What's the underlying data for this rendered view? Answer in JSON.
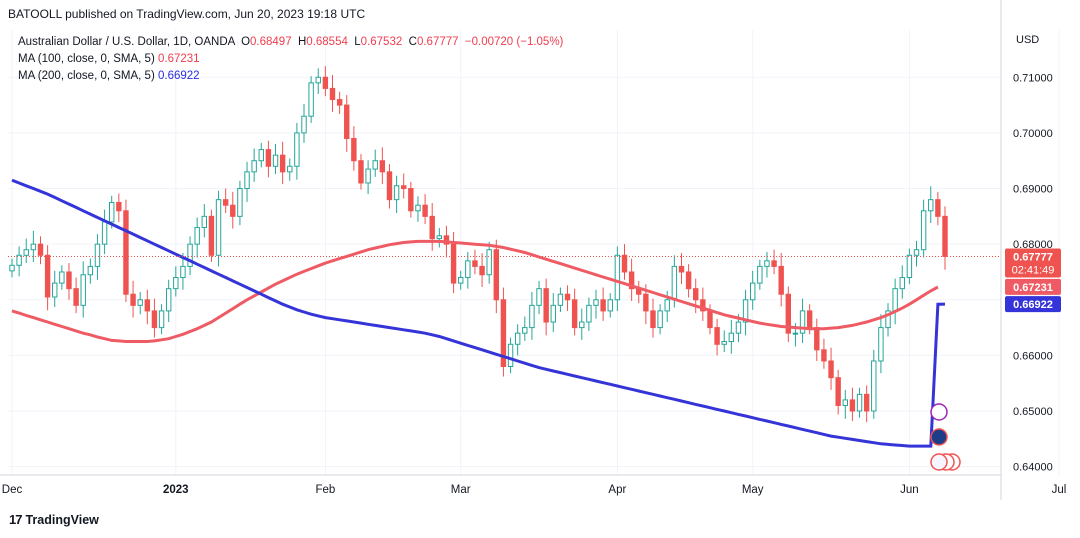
{
  "header": {
    "published": "BATOOLL published on TradingView.com, Jun 20, 2023 19:18 UTC"
  },
  "legend": {
    "symbol": "Australian Dollar / U.S. Dollar, 1D, OANDA",
    "o_label": "O",
    "o_value": "0.68497",
    "h_label": "H",
    "h_value": "0.68554",
    "l_label": "L",
    "l_value": "0.67532",
    "c_label": "C",
    "c_value": "0.67777",
    "change": "−0.00720 (−1.05%)",
    "ma100_label": "MA (100, close, 0, SMA, 5)",
    "ma100_value": "0.67231",
    "ma200_label": "MA (200, close, 0, SMA, 5)",
    "ma200_value": "0.66922"
  },
  "axis": {
    "currency": "USD",
    "price_box": "0.67777",
    "countdown": "02:41:49",
    "ma100_box": "0.67231",
    "ma200_box": "0.66922"
  },
  "footer": {
    "brand": "TradingView",
    "mark": "17"
  },
  "colors": {
    "up": "#26a69a",
    "down": "#ef5350",
    "ma100": "#ef5b64",
    "ma200": "#3434d8"
  },
  "chart_data": {
    "type": "candlestick",
    "title": "Australian Dollar / U.S. Dollar, 1D, OANDA",
    "y_ticks": [
      0.64,
      0.65,
      0.66,
      0.67,
      0.68,
      0.69,
      0.7,
      0.71
    ],
    "y_tick_labels": [
      "0.64000",
      "0.65000",
      "0.66000",
      "0.67000",
      "0.68000",
      "0.69000",
      "0.70000",
      "0.71000"
    ],
    "ylim": [
      0.6385,
      0.7185
    ],
    "x_labels": [
      "Dec",
      "2023",
      "Feb",
      "Mar",
      "Apr",
      "May",
      "Jun",
      "Jul"
    ],
    "x_label_index": [
      0,
      23,
      44,
      63,
      85,
      104,
      126,
      147
    ],
    "closes": [
      0.6762,
      0.678,
      0.679,
      0.68,
      0.678,
      0.6705,
      0.673,
      0.675,
      0.672,
      0.669,
      0.6745,
      0.676,
      0.68,
      0.684,
      0.6875,
      0.686,
      0.671,
      0.669,
      0.67,
      0.668,
      0.665,
      0.668,
      0.672,
      0.674,
      0.676,
      0.68,
      0.683,
      0.685,
      0.678,
      0.688,
      0.687,
      0.685,
      0.69,
      0.693,
      0.695,
      0.697,
      0.694,
      0.696,
      0.693,
      0.694,
      0.7,
      0.703,
      0.709,
      0.71,
      0.708,
      0.706,
      0.705,
      0.699,
      0.695,
      0.691,
      0.6935,
      0.695,
      0.693,
      0.688,
      0.6905,
      0.69,
      0.686,
      0.687,
      0.685,
      0.681,
      0.6815,
      0.68,
      0.673,
      0.674,
      0.677,
      0.676,
      0.6745,
      0.679,
      0.67,
      0.658,
      0.662,
      0.664,
      0.665,
      0.669,
      0.672,
      0.666,
      0.669,
      0.671,
      0.67,
      0.665,
      0.666,
      0.669,
      0.67,
      0.668,
      0.67,
      0.678,
      0.675,
      0.672,
      0.671,
      0.668,
      0.665,
      0.668,
      0.67,
      0.676,
      0.675,
      0.672,
      0.67,
      0.668,
      0.665,
      0.662,
      0.6625,
      0.664,
      0.666,
      0.67,
      0.673,
      0.676,
      0.677,
      0.676,
      0.671,
      0.664,
      0.664,
      0.668,
      0.665,
      0.661,
      0.659,
      0.656,
      0.651,
      0.652,
      0.65,
      0.653,
      0.65,
      0.659,
      0.665,
      0.668,
      0.672,
      0.674,
      0.678,
      0.679,
      0.686,
      0.688,
      0.685,
      0.6778
    ],
    "ma100": [
      0.668,
      0.6676,
      0.6672,
      0.6668,
      0.6664,
      0.666,
      0.6656,
      0.6652,
      0.6648,
      0.6644,
      0.664,
      0.6637,
      0.6633,
      0.663,
      0.6627,
      0.6626,
      0.6625,
      0.6625,
      0.6625,
      0.6625,
      0.6626,
      0.6628,
      0.663,
      0.6634,
      0.6638,
      0.6643,
      0.6648,
      0.6654,
      0.666,
      0.6668,
      0.6676,
      0.6684,
      0.6692,
      0.67,
      0.6707,
      0.6714,
      0.6721,
      0.6728,
      0.6734,
      0.674,
      0.6746,
      0.6751,
      0.6756,
      0.6761,
      0.6766,
      0.677,
      0.6774,
      0.6778,
      0.6782,
      0.6786,
      0.679,
      0.6793,
      0.6796,
      0.6799,
      0.6801,
      0.6803,
      0.6804,
      0.6805,
      0.6805,
      0.6805,
      0.6805,
      0.6804,
      0.6803,
      0.6802,
      0.6801,
      0.68,
      0.6799,
      0.6798,
      0.6796,
      0.6794,
      0.6791,
      0.6788,
      0.6785,
      0.6781,
      0.6777,
      0.6773,
      0.6769,
      0.6765,
      0.6761,
      0.6757,
      0.6753,
      0.6749,
      0.6745,
      0.6741,
      0.6737,
      0.6733,
      0.6729,
      0.6725,
      0.6721,
      0.6717,
      0.6713,
      0.6709,
      0.6705,
      0.6701,
      0.6697,
      0.6693,
      0.6689,
      0.6685,
      0.6681,
      0.6677,
      0.6673,
      0.667,
      0.6667,
      0.6664,
      0.6661,
      0.6658,
      0.6656,
      0.6654,
      0.6652,
      0.6651,
      0.665,
      0.6649,
      0.6648,
      0.6648,
      0.6648,
      0.6649,
      0.665,
      0.6652,
      0.6654,
      0.6657,
      0.666,
      0.6664,
      0.6668,
      0.6673,
      0.6679,
      0.6685,
      0.6692,
      0.67,
      0.6708,
      0.6716,
      0.6723
    ],
    "ma200": [
      0.6915,
      0.691,
      0.6905,
      0.69,
      0.6895,
      0.689,
      0.6884,
      0.6878,
      0.6872,
      0.6866,
      0.686,
      0.6854,
      0.6848,
      0.6842,
      0.6836,
      0.683,
      0.6824,
      0.6818,
      0.6812,
      0.6806,
      0.68,
      0.6794,
      0.6788,
      0.6782,
      0.6776,
      0.677,
      0.6764,
      0.6758,
      0.6752,
      0.6746,
      0.674,
      0.6734,
      0.6728,
      0.6722,
      0.6716,
      0.671,
      0.6704,
      0.6698,
      0.6692,
      0.6687,
      0.6682,
      0.6678,
      0.6674,
      0.6671,
      0.6668,
      0.6666,
      0.6664,
      0.6662,
      0.666,
      0.6658,
      0.6656,
      0.6654,
      0.6652,
      0.665,
      0.6648,
      0.6646,
      0.6644,
      0.6642,
      0.664,
      0.6637,
      0.6634,
      0.663,
      0.6626,
      0.6622,
      0.6618,
      0.6614,
      0.661,
      0.6606,
      0.6602,
      0.6598,
      0.6594,
      0.659,
      0.6586,
      0.6582,
      0.6578,
      0.6575,
      0.6572,
      0.6569,
      0.6566,
      0.6563,
      0.656,
      0.6557,
      0.6554,
      0.6551,
      0.6548,
      0.6545,
      0.6542,
      0.6539,
      0.6536,
      0.6533,
      0.653,
      0.6527,
      0.6524,
      0.6521,
      0.6518,
      0.6515,
      0.6512,
      0.6509,
      0.6506,
      0.6503,
      0.65,
      0.6497,
      0.6494,
      0.6491,
      0.6488,
      0.6485,
      0.6482,
      0.6479,
      0.6476,
      0.6473,
      0.647,
      0.6467,
      0.6464,
      0.6461,
      0.6458,
      0.6455,
      0.6453,
      0.6451,
      0.6449,
      0.6447,
      0.6445,
      0.6443,
      0.6441,
      0.644,
      0.6439,
      0.6438,
      0.6437,
      0.6437,
      0.6437,
      0.6437,
      0.6692
    ],
    "ma100_last": 0.67231,
    "ma200_last": 0.66922,
    "last_close": 0.67777
  }
}
